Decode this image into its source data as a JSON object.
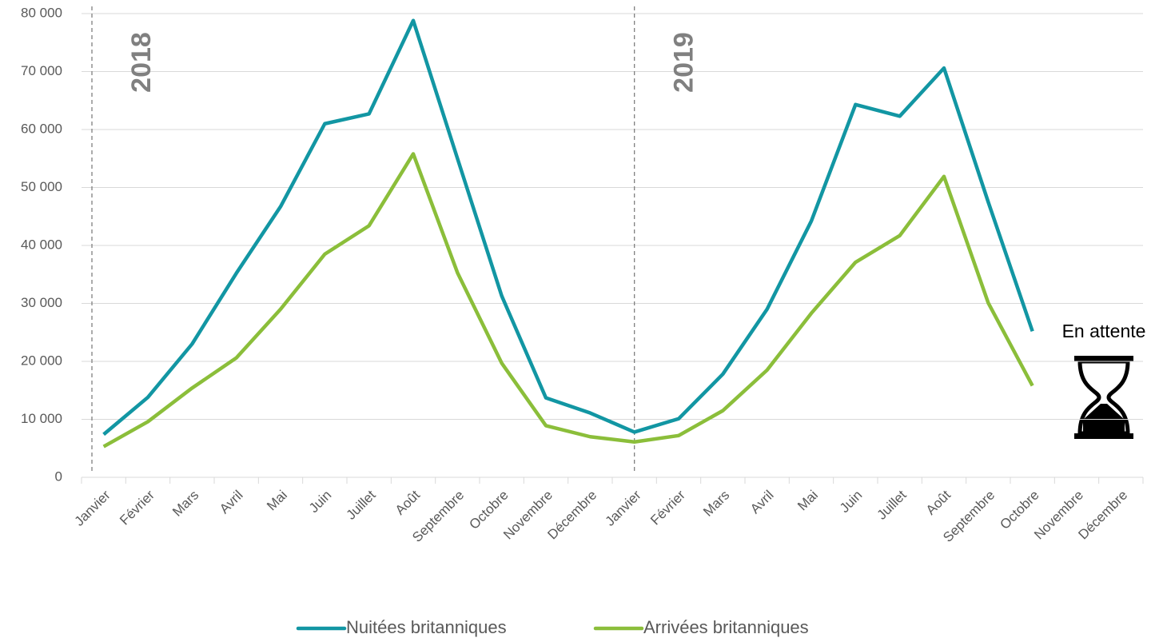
{
  "chart_data": {
    "type": "line",
    "categories": [
      "Janvier",
      "Février",
      "Mars",
      "Avril",
      "Mai",
      "Juin",
      "Juillet",
      "Août",
      "Septembre",
      "Octobre",
      "Novembre",
      "Décembre",
      "Janvier",
      "Février",
      "Mars",
      "Avril",
      "Mai",
      "Juin",
      "Juillet",
      "Août",
      "Septembre",
      "Octobre",
      "Novembre",
      "Décembre"
    ],
    "series": [
      {
        "name": "Nuitées britanniques",
        "color": "#1296a3",
        "values": [
          7400,
          13800,
          23000,
          35200,
          46700,
          61000,
          62700,
          78800,
          55000,
          31300,
          13700,
          11100,
          7800,
          10100,
          17800,
          29000,
          44200,
          64300,
          62300,
          70600,
          47500,
          25200,
          null,
          null
        ]
      },
      {
        "name": "Arrivées britanniques",
        "color": "#8bbe3a",
        "values": [
          5300,
          9600,
          15400,
          20600,
          29000,
          38500,
          43400,
          55800,
          35300,
          19700,
          8900,
          7000,
          6100,
          7200,
          11500,
          18500,
          28300,
          37100,
          41700,
          51900,
          30100,
          15800,
          null,
          null
        ]
      }
    ],
    "ylim": [
      0,
      80000
    ],
    "yticks": [
      0,
      {
        "value": 10000,
        "label": "10 000"
      },
      {
        "value": 20000,
        "label": "20 000"
      },
      {
        "value": 30000,
        "label": "30 000"
      },
      {
        "value": 40000,
        "label": "40 000"
      },
      {
        "value": 50000,
        "label": "50 000"
      },
      {
        "value": 60000,
        "label": "60 000"
      },
      {
        "value": 70000,
        "label": "70 000"
      },
      {
        "value": 80000,
        "label": "80 000"
      }
    ],
    "grid": true,
    "annotations": [
      "2018",
      "2019",
      "En attente"
    ],
    "legend": "bottom"
  }
}
